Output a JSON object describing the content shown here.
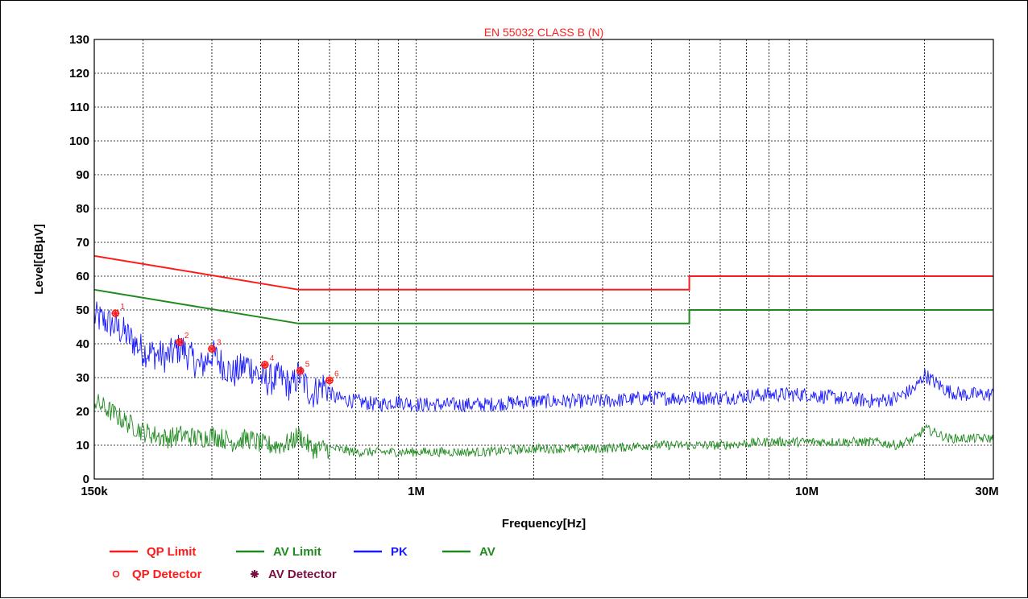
{
  "chart_data": {
    "type": "line",
    "title": "EN 55032 CLASS  B (N)",
    "xlabel": "Frequency[Hz]",
    "ylabel": "Level[dBμV]",
    "xscale": "log",
    "xlim": [
      150000,
      30000000
    ],
    "ylim": [
      0,
      130
    ],
    "grid": true,
    "x_tick_labels": [
      {
        "value": 150000,
        "label": "150k"
      },
      {
        "value": 1000000,
        "label": "1M"
      },
      {
        "value": 10000000,
        "label": "10M"
      },
      {
        "value": 30000000,
        "label": "30M"
      }
    ],
    "y_ticks": [
      0,
      10,
      20,
      30,
      40,
      50,
      60,
      70,
      80,
      90,
      100,
      110,
      120,
      130
    ],
    "y_tick_labels": [
      "0",
      "10",
      "20",
      "30",
      "40",
      "50",
      "60",
      "70",
      "80",
      "90",
      "100",
      "110",
      "120",
      "130"
    ],
    "series": [
      {
        "name": "QP Limit",
        "color": "#ff1a1a",
        "x": [
          150000,
          500000,
          500000,
          5000000,
          5000000,
          30000000
        ],
        "y": [
          66,
          56,
          56,
          56,
          60,
          60
        ]
      },
      {
        "name": "AV Limit",
        "color": "#1f8a1f",
        "x": [
          150000,
          500000,
          500000,
          5000000,
          5000000,
          30000000
        ],
        "y": [
          56,
          46,
          46,
          46,
          50,
          50
        ]
      },
      {
        "name": "PK",
        "color": "#1a1aff",
        "x": [
          150000,
          165000,
          180000,
          200000,
          230000,
          250000,
          280000,
          300000,
          340000,
          370000,
          410000,
          450000,
          480000,
          500000,
          540000,
          580000,
          620000,
          700000,
          800000,
          900000,
          1000000,
          1200000,
          1500000,
          2000000,
          3000000,
          4000000,
          5000000,
          6000000,
          8000000,
          10000000,
          12000000,
          15000000,
          17000000,
          19000000,
          20000000,
          21000000,
          23000000,
          25000000,
          30000000
        ],
        "y": [
          48,
          46,
          43,
          38,
          36,
          39,
          33,
          37,
          31,
          34,
          29,
          30,
          27,
          31,
          25,
          28,
          24,
          23,
          22,
          23,
          22,
          22,
          22,
          23,
          23,
          24,
          24,
          24,
          25,
          25,
          24,
          23,
          24,
          27,
          31,
          29,
          26,
          25,
          25
        ],
        "noise": 2.2
      },
      {
        "name": "AV",
        "color": "#1f8a1f",
        "x": [
          150000,
          165000,
          180000,
          200000,
          230000,
          250000,
          280000,
          300000,
          340000,
          370000,
          410000,
          450000,
          480000,
          500000,
          540000,
          580000,
          620000,
          700000,
          800000,
          900000,
          1000000,
          1200000,
          1500000,
          2000000,
          3000000,
          4000000,
          5000000,
          6000000,
          8000000,
          10000000,
          12000000,
          15000000,
          17000000,
          19000000,
          20000000,
          21000000,
          23000000,
          25000000,
          30000000
        ],
        "y": [
          23,
          20,
          17,
          14,
          12,
          13,
          12,
          13,
          11,
          12,
          10,
          10,
          11,
          13,
          9,
          9,
          9,
          8,
          8,
          8,
          8,
          8,
          8,
          9,
          9,
          10,
          10,
          10,
          11,
          11,
          11,
          11,
          10,
          12,
          15,
          14,
          12,
          12,
          12
        ],
        "noise": 1.4
      }
    ],
    "markers": [
      {
        "id": "1",
        "x": 170000,
        "y": 49
      },
      {
        "id": "2",
        "x": 248000,
        "y": 40.5
      },
      {
        "id": "3",
        "x": 300000,
        "y": 38.5
      },
      {
        "id": "4",
        "x": 410000,
        "y": 33.8
      },
      {
        "id": "5",
        "x": 505000,
        "y": 32
      },
      {
        "id": "6",
        "x": 600000,
        "y": 29.2
      }
    ],
    "legend": {
      "placement": "bottom-left",
      "items": [
        {
          "label": "QP Limit",
          "type": "line",
          "color": "#ff1a1a"
        },
        {
          "label": "AV Limit",
          "type": "line",
          "color": "#1f8a1f"
        },
        {
          "label": "PK",
          "type": "line",
          "color": "#1a1aff"
        },
        {
          "label": "AV",
          "type": "line",
          "color": "#1f8a1f"
        },
        {
          "label": "QP Detector",
          "type": "circle",
          "color": "#ff1a1a"
        },
        {
          "label": "AV Detector",
          "type": "star",
          "color": "#7a1040"
        }
      ]
    }
  }
}
